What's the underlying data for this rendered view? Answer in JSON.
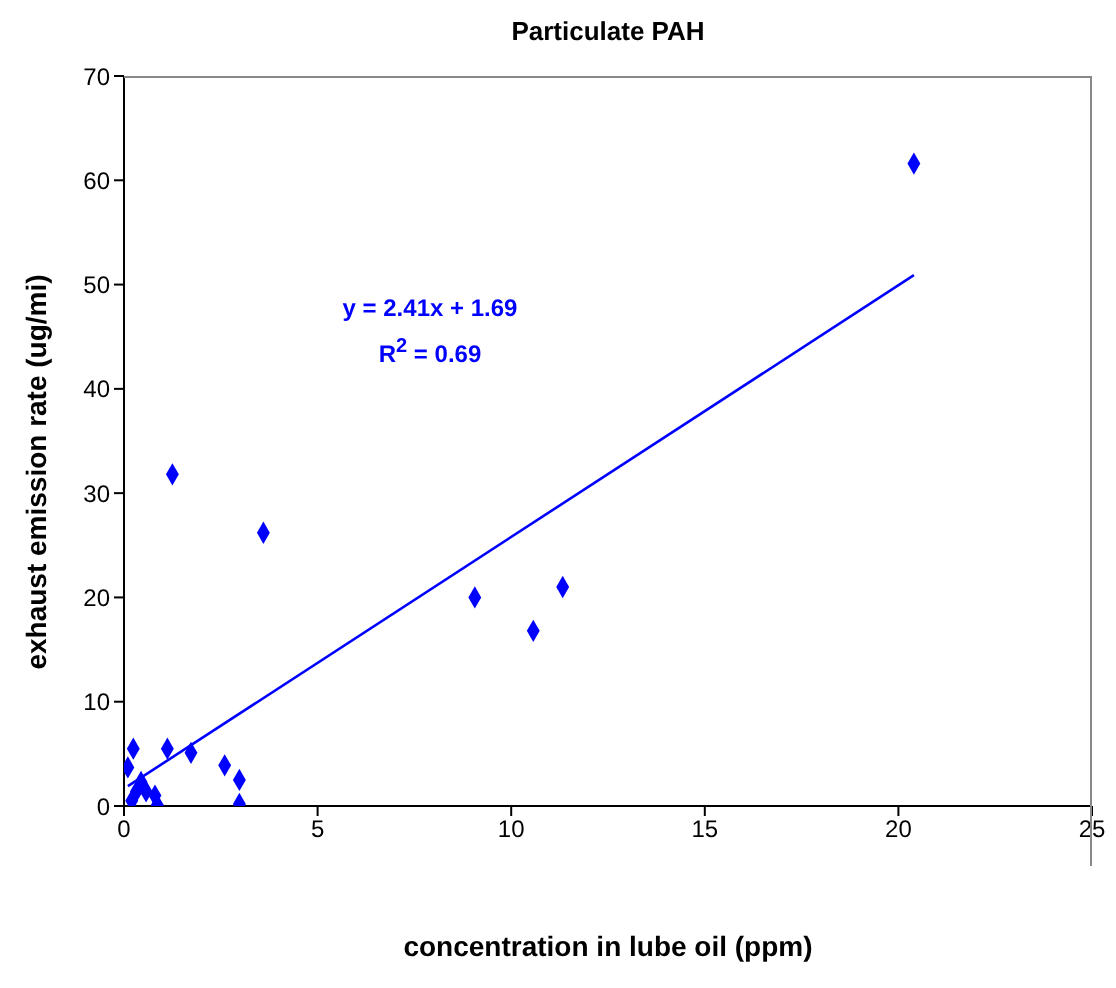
{
  "chart_data": {
    "type": "scatter",
    "title": "Particulate PAH",
    "xlabel": "concentration in lube oil (ppm)",
    "ylabel": "exhaust emission rate (ug/mi)",
    "annotations": [
      "y = 2.41x + 1.69",
      "R$^{2}$ = 0.69"
    ],
    "xlim": [
      0,
      25
    ],
    "xticks": [
      0,
      5,
      10,
      15,
      20,
      25
    ],
    "ylim": [
      0,
      70
    ],
    "yticks": [
      0,
      10,
      20,
      30,
      40,
      50,
      60,
      70
    ],
    "grid": false,
    "series": [
      {
        "marker": "diamond",
        "color": "#0000ff",
        "x": [
          20.4,
          1.25,
          3.6,
          9.06,
          10.57,
          11.33,
          0.24,
          0.1,
          1.12,
          1.73,
          2.6,
          2.98,
          2.98,
          0.44,
          0.32,
          0.2,
          0.8,
          0.86,
          0.57
        ],
        "values": [
          61.6,
          31.8,
          26.2,
          20.0,
          16.8,
          21.0,
          5.5,
          3.7,
          5.5,
          5.1,
          3.9,
          2.5,
          0.2,
          2.3,
          1.4,
          0.5,
          1.0,
          0.1,
          1.4
        ]
      },
      {
        "type": "line",
        "marker": "none",
        "color": "#0000ff",
        "x": [
          0.1,
          20.4
        ],
        "values": [
          1.9,
          50.9
        ]
      }
    ]
  }
}
